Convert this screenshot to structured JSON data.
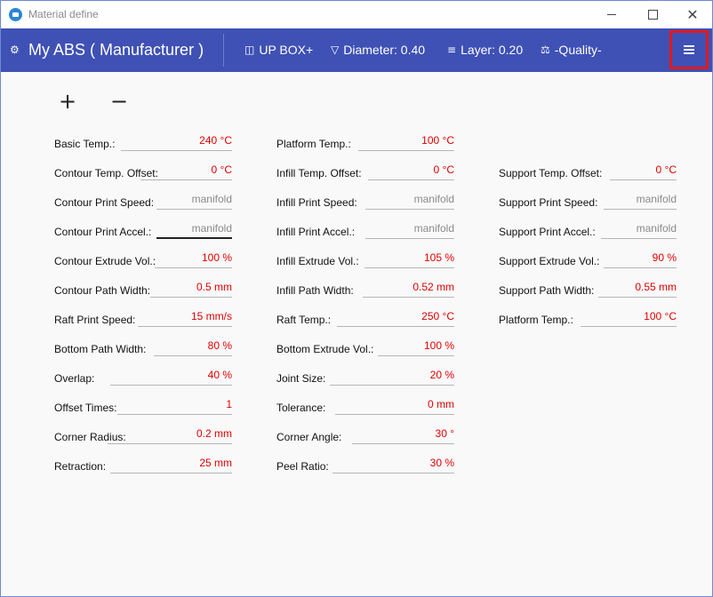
{
  "window": {
    "title": "Material define"
  },
  "header": {
    "title": "My ABS ( Manufacturer )",
    "printer": "UP BOX+",
    "diameter": "Diameter: 0.40",
    "layer": "Layer: 0.20",
    "quality": "-Quality-"
  },
  "toolbar": {
    "add_label": "+",
    "remove_label": "−"
  },
  "columns": [
    {
      "fields": [
        {
          "label": "Basic Temp.:",
          "value": "240 °C"
        },
        {
          "label": "Contour Temp. Offset:",
          "value": "0 °C"
        },
        {
          "label": "Contour Print Speed:",
          "value": "manifold"
        },
        {
          "label": "Contour Print Accel.:",
          "value": "manifold"
        },
        {
          "label": "Contour Extrude Vol.:",
          "value": "100 %"
        },
        {
          "label": "Contour Path Width:",
          "value": "0.5 mm"
        },
        {
          "label": "Raft Print Speed:",
          "value": "15 mm/s"
        },
        {
          "label": "Bottom Path Width:",
          "value": "80 %"
        },
        {
          "label": "Overlap:",
          "value": "40 %"
        },
        {
          "label": "Offset Times:",
          "value": "1"
        },
        {
          "label": "Corner Radius:",
          "value": "0.2 mm"
        },
        {
          "label": "Retraction:",
          "value": "25 mm"
        }
      ]
    },
    {
      "fields": [
        {
          "label": "Platform Temp.:",
          "value": "100 °C"
        },
        {
          "label": "Infill Temp. Offset:",
          "value": "0 °C"
        },
        {
          "label": "Infill Print Speed:",
          "value": "manifold"
        },
        {
          "label": "Infill Print Accel.:",
          "value": "manifold"
        },
        {
          "label": "Infill Extrude Vol.:",
          "value": "105 %"
        },
        {
          "label": "Infill Path Width:",
          "value": "0.52 mm"
        },
        {
          "label": "Raft Temp.:",
          "value": "250 °C"
        },
        {
          "label": "Bottom Extrude Vol.:",
          "value": "100 %"
        },
        {
          "label": "Joint Size:",
          "value": "20 %"
        },
        {
          "label": "Tolerance:",
          "value": "0 mm"
        },
        {
          "label": "Corner Angle:",
          "value": "30 °"
        },
        {
          "label": "Peel Ratio:",
          "value": "30 %"
        }
      ]
    },
    {
      "fields": [
        {
          "label": "Support Temp. Offset:",
          "value": "0 °C"
        },
        {
          "label": "Support Print Speed:",
          "value": "manifold"
        },
        {
          "label": "Support Print Accel.:",
          "value": "manifold"
        },
        {
          "label": "Support Extrude Vol.:",
          "value": "90 %"
        },
        {
          "label": "Support Path Width:",
          "value": "0.55 mm"
        },
        {
          "label": "Platform Temp.:",
          "value": "100 °C"
        }
      ]
    }
  ],
  "colors": {
    "header_bg": "#3f51b5",
    "value_red": "#e00000",
    "value_grey": "#8a8a8a",
    "highlight": "#e0191e"
  }
}
